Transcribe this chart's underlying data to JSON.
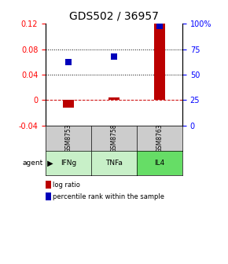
{
  "title": "GDS502 / 36957",
  "samples": [
    "GSM8753",
    "GSM8758",
    "GSM8763"
  ],
  "agents": [
    "IFNg",
    "TNFa",
    "IL4"
  ],
  "log_ratios": [
    -0.012,
    0.004,
    0.121
  ],
  "percentile_ranks_pct": [
    62,
    68,
    98
  ],
  "left_ylim": [
    -0.04,
    0.12
  ],
  "left_yticks": [
    -0.04,
    0.0,
    0.04,
    0.08,
    0.12
  ],
  "left_yticklabels": [
    "-0.04",
    "0",
    "0.04",
    "0.08",
    "0.12"
  ],
  "right_yticks": [
    0,
    25,
    50,
    75,
    100
  ],
  "right_yticklabels": [
    "0",
    "25",
    "50",
    "75",
    "100%"
  ],
  "dotted_lines": [
    0.04,
    0.08
  ],
  "bar_color": "#bb0000",
  "square_color": "#0000bb",
  "dashed_line_color": "#cc0000",
  "agent_colors": [
    "#c8f0c8",
    "#c8f0c8",
    "#66dd66"
  ],
  "sample_bg_color": "#cccccc",
  "title_fontsize": 10,
  "tick_fontsize": 7,
  "bar_width": 0.25,
  "bar_lw": 0
}
